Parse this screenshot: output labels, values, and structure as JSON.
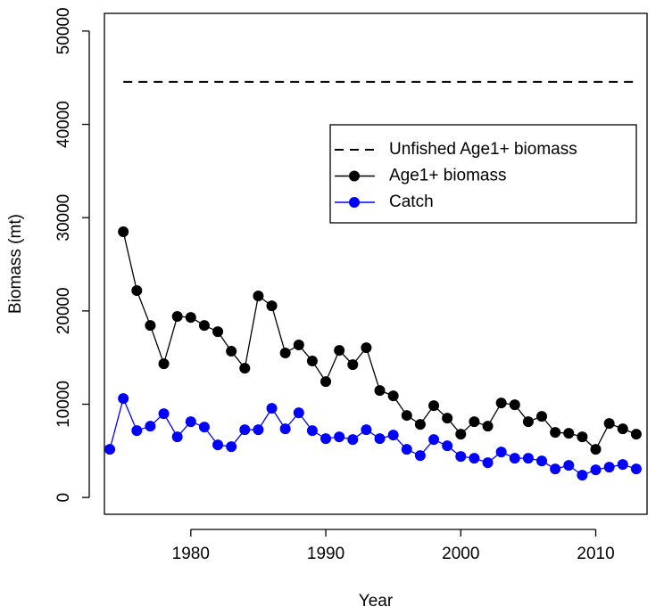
{
  "chart_data": {
    "type": "line",
    "x_label": "Year",
    "y_label": "Biomass (mt)",
    "x": [
      1974,
      1975,
      1976,
      1977,
      1978,
      1979,
      1980,
      1981,
      1982,
      1983,
      1984,
      1985,
      1986,
      1987,
      1988,
      1989,
      1990,
      1991,
      1992,
      1993,
      1994,
      1995,
      1996,
      1997,
      1998,
      1999,
      2000,
      2001,
      2002,
      2003,
      2004,
      2005,
      2006,
      2007,
      2008,
      2009,
      2010,
      2011,
      2012,
      2013
    ],
    "series": [
      {
        "name": "Unfished Age1+ biomass",
        "color": "#000000",
        "dashed": true,
        "markers": false,
        "values": [
          null,
          44550,
          44550,
          44550,
          44550,
          44550,
          44550,
          44550,
          44550,
          44550,
          44550,
          44550,
          44550,
          44550,
          44550,
          44550,
          44550,
          44550,
          44550,
          44550,
          44550,
          44550,
          44550,
          44550,
          44550,
          44550,
          44550,
          44550,
          44550,
          44550,
          44550,
          44550,
          44550,
          44550,
          44550,
          44550,
          44550,
          44550,
          44550,
          44550
        ]
      },
      {
        "name": "Age1+ biomass",
        "color": "#000000",
        "dashed": false,
        "markers": true,
        "values": [
          null,
          28490,
          22180,
          18450,
          14340,
          19410,
          19310,
          18450,
          17780,
          15680,
          13860,
          21610,
          20550,
          15490,
          16350,
          14630,
          12430,
          15770,
          14240,
          16060,
          11470,
          10900,
          8800,
          7840,
          9850,
          8510,
          6790,
          8130,
          7650,
          10130,
          9940,
          8130,
          8700,
          6980,
          6880,
          6500,
          5160,
          7930,
          7360,
          6790
        ]
      },
      {
        "name": "Catch",
        "color": "#0000ff",
        "dashed": false,
        "markers": true,
        "values": [
          5160,
          10610,
          7170,
          7650,
          8990,
          6500,
          8130,
          7550,
          5640,
          5450,
          7270,
          7270,
          9560,
          7360,
          9080,
          7170,
          6310,
          6500,
          6210,
          7270,
          6310,
          6690,
          5160,
          4490,
          6210,
          5540,
          4400,
          4210,
          3730,
          4880,
          4210,
          4210,
          3920,
          3060,
          3440,
          2390,
          2970,
          3250,
          3540,
          3060
        ]
      }
    ],
    "xlim": [
      1973.6,
      2013.8
    ],
    "ylim": [
      -1800,
      51900
    ],
    "xticks": [
      1980,
      1990,
      2000,
      2010
    ],
    "yticks": [
      0,
      10000,
      20000,
      30000,
      40000,
      50000
    ],
    "legend": "right"
  }
}
